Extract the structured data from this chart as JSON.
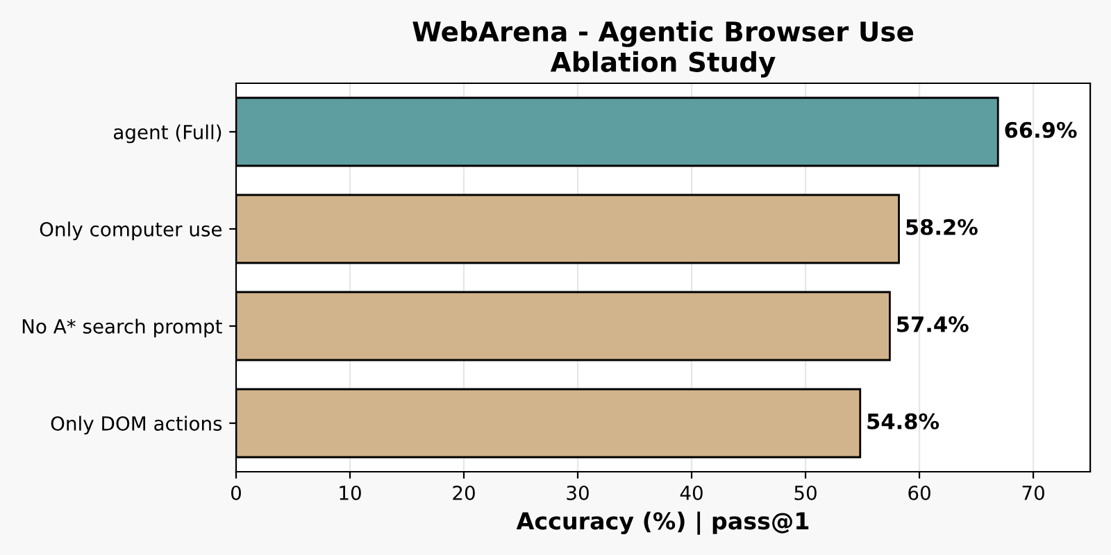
{
  "chart_data": {
    "type": "bar",
    "orientation": "horizontal",
    "title": "WebArena - Agentic Browser Use\nAblation Study",
    "xlabel": "Accuracy (%) | pass@1",
    "categories": [
      "agent (Full)",
      "Only computer use",
      "No A* search prompt",
      "Only DOM actions"
    ],
    "values": [
      66.9,
      58.2,
      57.4,
      54.8
    ],
    "colors": [
      "#5f9ea0",
      "#d2b48c",
      "#d2b48c",
      "#d2b48c"
    ],
    "value_labels": [
      "66.9%",
      "58.2%",
      "57.4%",
      "54.8%"
    ],
    "xlim": [
      0,
      75
    ],
    "xticks": [
      0,
      10,
      20,
      30,
      40,
      50,
      60,
      70
    ],
    "grid": "x"
  }
}
